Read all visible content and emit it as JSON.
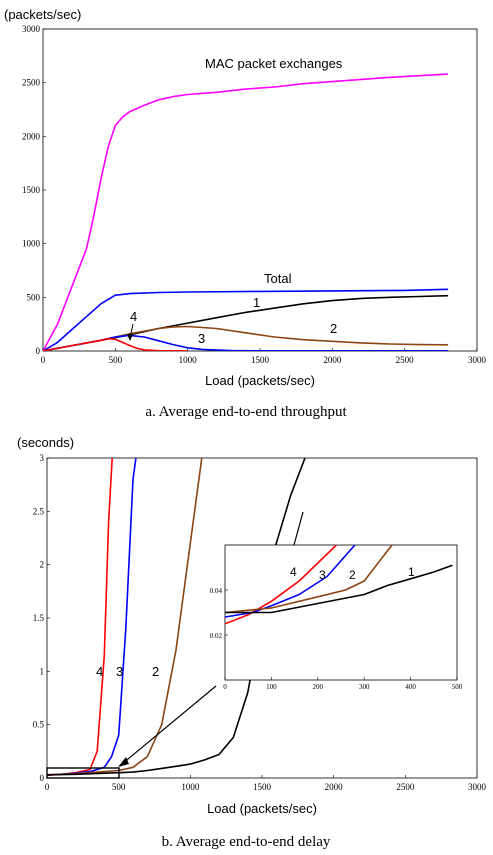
{
  "chart_data": [
    {
      "type": "line",
      "unit_label": "(packets/sec)",
      "xlabel": "Load (packets/sec)",
      "caption": "a.  Average end-to-end throughput",
      "xlim": [
        0,
        3000
      ],
      "ylim": [
        0,
        3000
      ],
      "xticks": [
        "0",
        "500",
        "1000",
        "1500",
        "2000",
        "2500",
        "3000"
      ],
      "yticks": [
        "0",
        "500",
        "1000",
        "1500",
        "2000",
        "2500",
        "3000"
      ],
      "series": [
        {
          "name": "MAC packet exchanges",
          "color": "#ff00ff",
          "points": [
            [
              0,
              0
            ],
            [
              100,
              250
            ],
            [
              200,
              600
            ],
            [
              300,
              950
            ],
            [
              350,
              1250
            ],
            [
              400,
              1600
            ],
            [
              450,
              1900
            ],
            [
              500,
              2100
            ],
            [
              550,
              2180
            ],
            [
              600,
              2230
            ],
            [
              700,
              2290
            ],
            [
              800,
              2340
            ],
            [
              900,
              2370
            ],
            [
              1000,
              2390
            ],
            [
              1200,
              2410
            ],
            [
              1400,
              2440
            ],
            [
              1600,
              2460
            ],
            [
              1800,
              2490
            ],
            [
              2000,
              2510
            ],
            [
              2200,
              2530
            ],
            [
              2400,
              2550
            ],
            [
              2600,
              2565
            ],
            [
              2800,
              2580
            ]
          ]
        },
        {
          "name": "Total",
          "color": "#0000ff",
          "points": [
            [
              0,
              0
            ],
            [
              100,
              80
            ],
            [
              200,
              200
            ],
            [
              300,
              320
            ],
            [
              400,
              440
            ],
            [
              500,
              520
            ],
            [
              600,
              535
            ],
            [
              800,
              545
            ],
            [
              1000,
              550
            ],
            [
              1500,
              555
            ],
            [
              2000,
              560
            ],
            [
              2500,
              565
            ],
            [
              2800,
              575
            ]
          ]
        },
        {
          "name": "1",
          "color": "#000000",
          "points": [
            [
              0,
              0
            ],
            [
              200,
              50
            ],
            [
              400,
              100
            ],
            [
              600,
              150
            ],
            [
              800,
              210
            ],
            [
              1000,
              260
            ],
            [
              1200,
              310
            ],
            [
              1400,
              360
            ],
            [
              1600,
              400
            ],
            [
              1800,
              440
            ],
            [
              2000,
              470
            ],
            [
              2200,
              490
            ],
            [
              2400,
              500
            ],
            [
              2600,
              508
            ],
            [
              2800,
              515
            ]
          ]
        },
        {
          "name": "2",
          "color": "#8b4513",
          "points": [
            [
              0,
              0
            ],
            [
              200,
              50
            ],
            [
              400,
              100
            ],
            [
              600,
              160
            ],
            [
              800,
              210
            ],
            [
              900,
              225
            ],
            [
              1000,
              228
            ],
            [
              1200,
              210
            ],
            [
              1400,
              170
            ],
            [
              1600,
              130
            ],
            [
              1800,
              105
            ],
            [
              2000,
              90
            ],
            [
              2200,
              75
            ],
            [
              2400,
              65
            ],
            [
              2600,
              60
            ],
            [
              2800,
              58
            ]
          ]
        },
        {
          "name": "3",
          "color": "#0000ff",
          "points": [
            [
              0,
              0
            ],
            [
              200,
              50
            ],
            [
              400,
              100
            ],
            [
              500,
              130
            ],
            [
              600,
              145
            ],
            [
              700,
              130
            ],
            [
              800,
              95
            ],
            [
              900,
              60
            ],
            [
              1000,
              30
            ],
            [
              1100,
              15
            ],
            [
              1300,
              5
            ],
            [
              1500,
              2
            ],
            [
              2800,
              2
            ]
          ]
        },
        {
          "name": "4",
          "color": "#ff0000",
          "points": [
            [
              0,
              0
            ],
            [
              200,
              50
            ],
            [
              400,
              100
            ],
            [
              450,
              115
            ],
            [
              500,
              110
            ],
            [
              550,
              80
            ],
            [
              600,
              50
            ],
            [
              650,
              25
            ],
            [
              700,
              10
            ],
            [
              800,
              3
            ],
            [
              1000,
              1
            ]
          ]
        }
      ],
      "annotations": [
        "4",
        "3",
        "2",
        "1",
        "Total",
        "MAC packet exchanges"
      ]
    },
    {
      "type": "line",
      "unit_label": "(seconds)",
      "xlabel": "Load (packets/sec)",
      "caption": "b.  Average end-to-end delay",
      "xlim": [
        0,
        3000
      ],
      "ylim": [
        0,
        3
      ],
      "xticks": [
        "0",
        "500",
        "1000",
        "1500",
        "2000",
        "2500",
        "3000"
      ],
      "yticks": [
        "0",
        "0.5",
        "1",
        "1.5",
        "2",
        "2.5",
        "3"
      ],
      "series": [
        {
          "name": "4",
          "color": "#ff0000",
          "points": [
            [
              0,
              0.025
            ],
            [
              100,
              0.035
            ],
            [
              200,
              0.05
            ],
            [
              300,
              0.08
            ],
            [
              350,
              0.25
            ],
            [
              400,
              1.15
            ],
            [
              430,
              2.4
            ],
            [
              455,
              3.0
            ]
          ]
        },
        {
          "name": "3",
          "color": "#0000ff",
          "points": [
            [
              0,
              0.028
            ],
            [
              100,
              0.035
            ],
            [
              200,
              0.045
            ],
            [
              300,
              0.06
            ],
            [
              400,
              0.1
            ],
            [
              450,
              0.2
            ],
            [
              500,
              0.4
            ],
            [
              550,
              1.4
            ],
            [
              600,
              2.8
            ],
            [
              620,
              3.0
            ]
          ]
        },
        {
          "name": "2",
          "color": "#8b4513",
          "points": [
            [
              0,
              0.03
            ],
            [
              200,
              0.04
            ],
            [
              400,
              0.06
            ],
            [
              500,
              0.07
            ],
            [
              600,
              0.1
            ],
            [
              700,
              0.2
            ],
            [
              800,
              0.5
            ],
            [
              900,
              1.2
            ],
            [
              1000,
              2.2
            ],
            [
              1080,
              3.0
            ]
          ]
        },
        {
          "name": "1",
          "color": "#000000",
          "points": [
            [
              0,
              0.03
            ],
            [
              200,
              0.035
            ],
            [
              400,
              0.045
            ],
            [
              500,
              0.05
            ],
            [
              600,
              0.055
            ],
            [
              700,
              0.07
            ],
            [
              800,
              0.09
            ],
            [
              900,
              0.11
            ],
            [
              1000,
              0.13
            ],
            [
              1100,
              0.17
            ],
            [
              1200,
              0.22
            ],
            [
              1300,
              0.38
            ],
            [
              1400,
              0.8
            ],
            [
              1500,
              1.5
            ],
            [
              1600,
              2.2
            ],
            [
              1700,
              2.65
            ],
            [
              1800,
              3.0
            ]
          ]
        }
      ],
      "inset": {
        "xlim": [
          0,
          500
        ],
        "ylim": [
          0,
          0.06
        ],
        "xticks": [
          "0",
          "100",
          "200",
          "300",
          "400",
          "500"
        ],
        "yticks": [
          "0.02",
          "0.04"
        ],
        "series": [
          {
            "name": "4",
            "color": "#ff0000",
            "points": [
              [
                0,
                0.025
              ],
              [
                50,
                0.029
              ],
              [
                100,
                0.035
              ],
              [
                160,
                0.044
              ],
              [
                200,
                0.052
              ],
              [
                240,
                0.06
              ]
            ]
          },
          {
            "name": "3",
            "color": "#0000ff",
            "points": [
              [
                0,
                0.028
              ],
              [
                60,
                0.03
              ],
              [
                100,
                0.033
              ],
              [
                160,
                0.038
              ],
              [
                220,
                0.046
              ],
              [
                280,
                0.06
              ]
            ]
          },
          {
            "name": "2",
            "color": "#8b4513",
            "points": [
              [
                0,
                0.03
              ],
              [
                100,
                0.032
              ],
              [
                200,
                0.037
              ],
              [
                260,
                0.04
              ],
              [
                300,
                0.044
              ],
              [
                360,
                0.06
              ]
            ]
          },
          {
            "name": "1",
            "color": "#000000",
            "points": [
              [
                0,
                0.03
              ],
              [
                50,
                0.03
              ],
              [
                100,
                0.03
              ],
              [
                200,
                0.034
              ],
              [
                300,
                0.038
              ],
              [
                350,
                0.042
              ],
              [
                400,
                0.045
              ],
              [
                450,
                0.048
              ],
              [
                490,
                0.051
              ]
            ]
          }
        ],
        "labels": [
          "4",
          "3",
          "2",
          "1"
        ]
      }
    }
  ]
}
